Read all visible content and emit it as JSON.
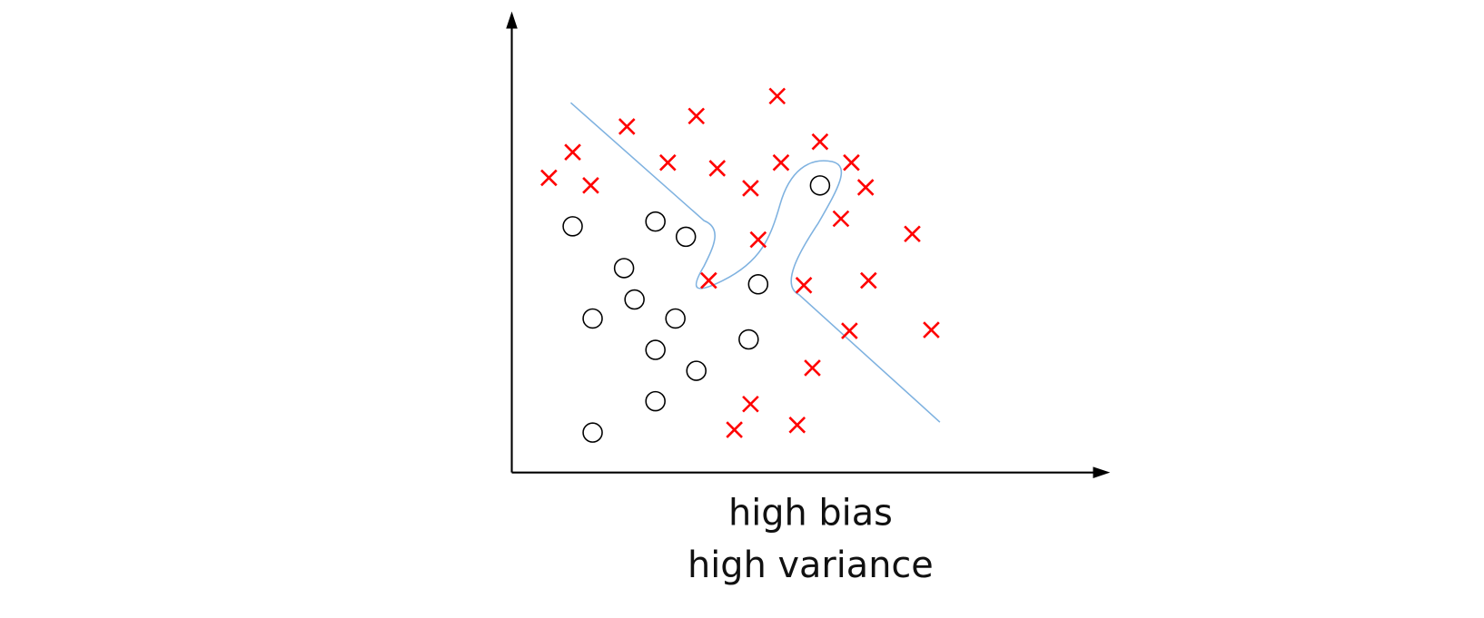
{
  "caption": {
    "lines": [
      "high bias",
      "high variance"
    ]
  }
}
